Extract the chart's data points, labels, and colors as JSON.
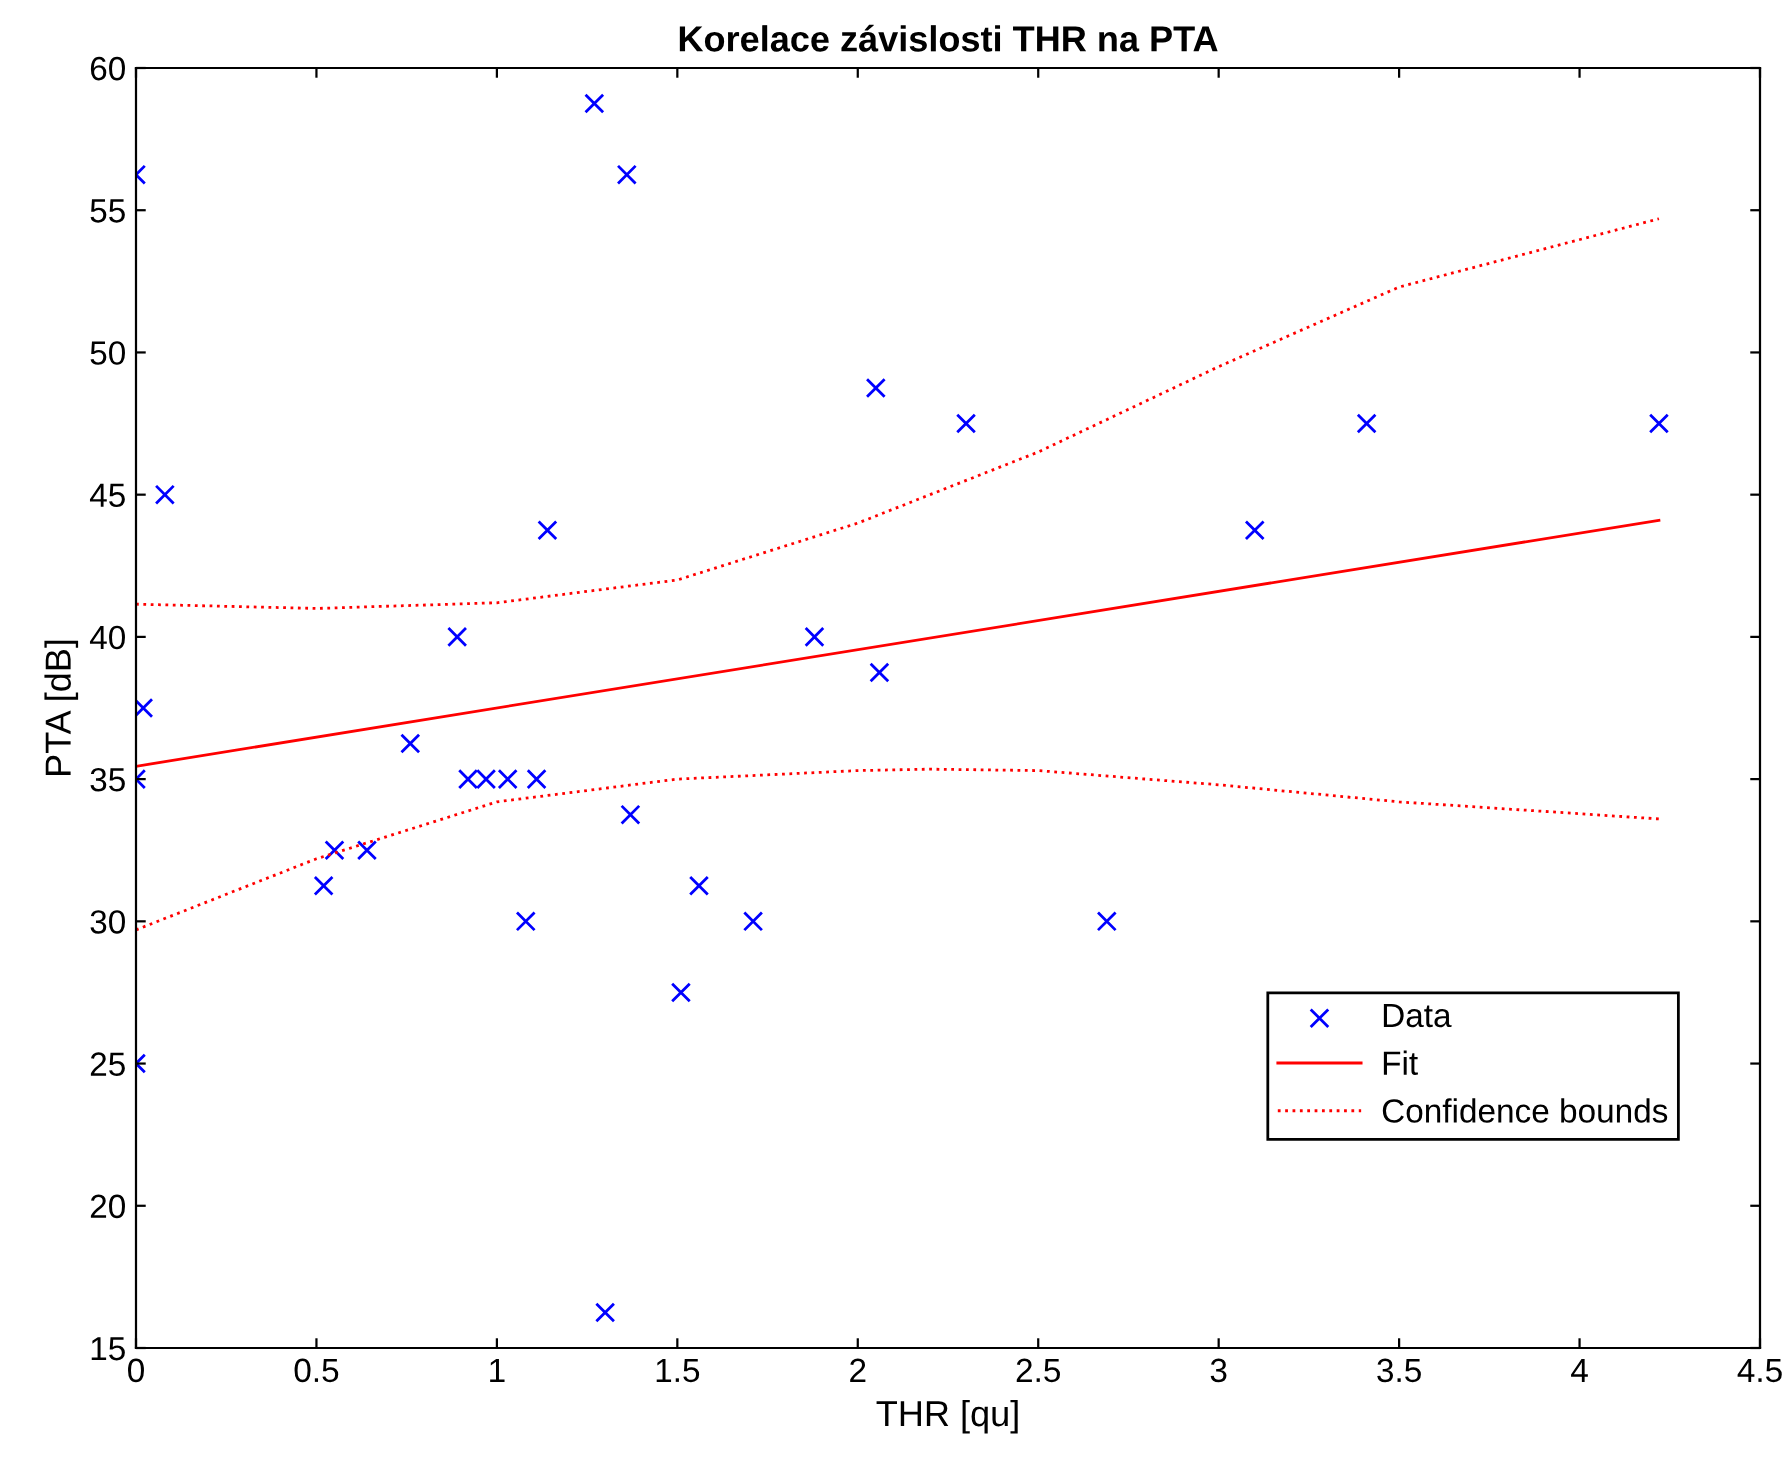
{
  "chart_data": {
    "type": "scatter",
    "title": "Korelace závislosti THR na PTA",
    "xlabel": "THR [qu]",
    "ylabel": "PTA [dB]",
    "xlim": [
      0,
      4.5
    ],
    "xticks": [
      0,
      0.5,
      1,
      1.5,
      2,
      2.5,
      3,
      3.5,
      4,
      4.5
    ],
    "ylim": [
      15,
      60
    ],
    "yticks": [
      15,
      20,
      25,
      30,
      35,
      40,
      45,
      50,
      55,
      60
    ],
    "grid": false,
    "legend": "bottom right",
    "series": [
      {
        "name": "Data",
        "marker": "cross",
        "color": "#0000ff",
        "x": [
          0,
          0.02,
          0,
          0,
          0.08,
          0.52,
          0.55,
          0.64,
          0.76,
          0.89,
          0.92,
          0.97,
          1.03,
          1.11,
          1.08,
          1.14,
          1.27,
          1.3,
          1.36,
          1.37,
          1.51,
          1.56,
          1.71,
          1.88,
          2.06,
          2.05,
          2.3,
          2.69,
          3.1,
          3.41,
          4.22
        ],
        "values": [
          56.25,
          37.5,
          35,
          25,
          45,
          31.25,
          32.5,
          32.5,
          36.25,
          40,
          35,
          35,
          35,
          35,
          30,
          43.75,
          58.75,
          16.25,
          56.25,
          33.75,
          27.5,
          31.25,
          30,
          40,
          38.75,
          48.75,
          47.5,
          30,
          43.75,
          47.5,
          47.5
        ]
      },
      {
        "name": "Fit",
        "type": "line",
        "line_style": "solid",
        "color": "#ff0000",
        "x": [
          0,
          4.22
        ],
        "values": [
          35.45,
          44.1
        ]
      },
      {
        "name": "Confidence bounds",
        "type": "line",
        "line_style": "dotted",
        "color": "#ff0000",
        "x": [
          0,
          0.5,
          1,
          1.5,
          2,
          2.5,
          3,
          3.5,
          4.22
        ],
        "values": [
          41.15,
          41.0,
          41.2,
          42.0,
          44.0,
          46.5,
          49.5,
          52.3,
          54.7
        ]
      },
      {
        "type": "line",
        "line_style": "dotted",
        "color": "#ff0000",
        "x": [
          0,
          0.5,
          1,
          1.5,
          2,
          2.2,
          2.5,
          3,
          3.5,
          4.22
        ],
        "values": [
          29.7,
          32.2,
          34.2,
          35.0,
          35.3,
          35.35,
          35.3,
          34.8,
          34.2,
          33.6
        ]
      }
    ]
  }
}
